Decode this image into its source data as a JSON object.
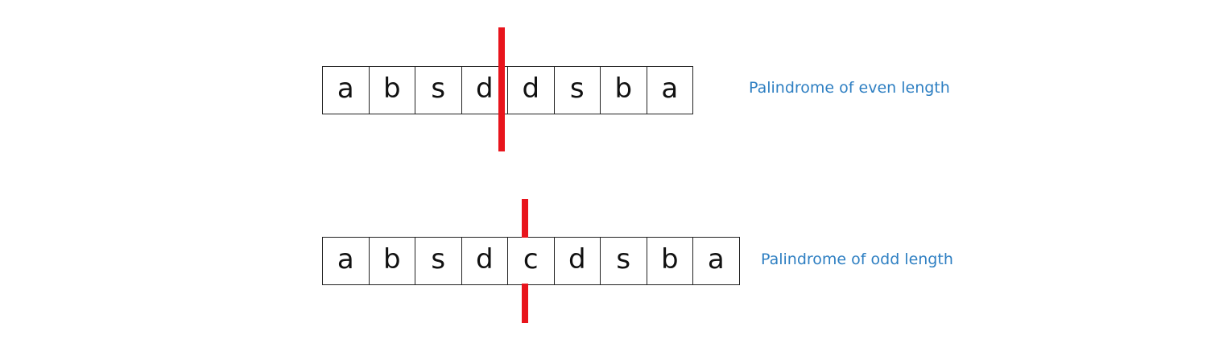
{
  "even_example": {
    "letters": [
      "a",
      "b",
      "s",
      "d",
      "d",
      "s",
      "b",
      "a"
    ],
    "caption": "Palindrome of even length",
    "marker_color": "#e8141c"
  },
  "odd_example": {
    "letters": [
      "a",
      "b",
      "s",
      "d",
      "c",
      "d",
      "s",
      "b",
      "a"
    ],
    "caption": "Palindrome of odd length",
    "marker_color": "#e8141c"
  },
  "caption_color": "#2e7fc2"
}
